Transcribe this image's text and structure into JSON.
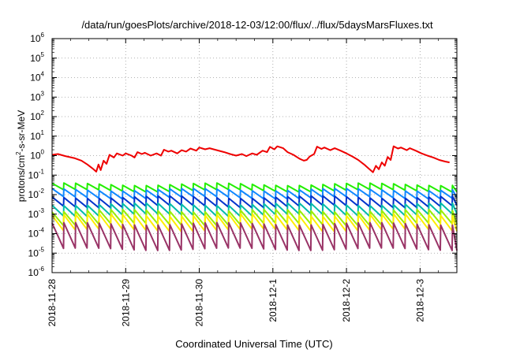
{
  "chart_data": {
    "type": "line",
    "title": "/data/run/goesPlots/archive/2018-12-03/12:00/flux/../flux/5daysMarsFluxes.txt",
    "xlabel": "Coordinated Universal Time (UTC)",
    "ylabel": {
      "prefix": "protons/cm",
      "sup": "2",
      "suffix": "-s-sr-MeV"
    },
    "yscale": "log",
    "ylim": [
      1e-06,
      1000000.0
    ],
    "y_ticks": [
      {
        "exp": -6,
        "base": "10",
        "sup": "-6"
      },
      {
        "exp": -5,
        "base": "10",
        "sup": "-5"
      },
      {
        "exp": -4,
        "base": "10",
        "sup": "-4"
      },
      {
        "exp": -3,
        "base": "10",
        "sup": "-3"
      },
      {
        "exp": -2,
        "base": "10",
        "sup": "-2"
      },
      {
        "exp": -1,
        "base": "10",
        "sup": "-1"
      },
      {
        "exp": 0,
        "base": "10",
        "sup": "0"
      },
      {
        "exp": 1,
        "base": "10",
        "sup": "1"
      },
      {
        "exp": 2,
        "base": "10",
        "sup": "2"
      },
      {
        "exp": 3,
        "base": "10",
        "sup": "3"
      },
      {
        "exp": 4,
        "base": "10",
        "sup": "4"
      },
      {
        "exp": 5,
        "base": "10",
        "sup": "5"
      },
      {
        "exp": 6,
        "base": "10",
        "sup": "6"
      }
    ],
    "x_range_days": [
      "2018-11-28T00:00",
      "2018-12-03T12:00"
    ],
    "x_ticks": [
      "2018-11-28",
      "2018-11-29",
      "2018-11-30",
      "2018-12-1",
      "2018-12-2",
      "2018-12-3"
    ],
    "grid": true,
    "series": [
      {
        "color": "#ee0000",
        "points": [
          [
            0.0,
            1.1
          ],
          [
            0.08,
            1.2
          ],
          [
            0.18,
            0.95
          ],
          [
            0.3,
            0.75
          ],
          [
            0.4,
            0.55
          ],
          [
            0.48,
            0.35
          ],
          [
            0.55,
            0.22
          ],
          [
            0.6,
            0.15
          ],
          [
            0.63,
            0.35
          ],
          [
            0.66,
            0.18
          ],
          [
            0.7,
            0.55
          ],
          [
            0.74,
            0.38
          ],
          [
            0.78,
            1.1
          ],
          [
            0.84,
            0.8
          ],
          [
            0.88,
            1.3
          ],
          [
            0.96,
            1.0
          ],
          [
            1.0,
            1.3
          ],
          [
            1.08,
            1.0
          ],
          [
            1.12,
            0.8
          ],
          [
            1.16,
            1.5
          ],
          [
            1.22,
            1.2
          ],
          [
            1.26,
            1.4
          ],
          [
            1.34,
            1.0
          ],
          [
            1.42,
            1.3
          ],
          [
            1.48,
            1.0
          ],
          [
            1.52,
            2.0
          ],
          [
            1.58,
            1.6
          ],
          [
            1.62,
            1.8
          ],
          [
            1.7,
            1.3
          ],
          [
            1.76,
            1.9
          ],
          [
            1.82,
            1.6
          ],
          [
            1.88,
            2.3
          ],
          [
            1.96,
            1.8
          ],
          [
            2.0,
            2.6
          ],
          [
            2.08,
            2.1
          ],
          [
            2.14,
            2.4
          ],
          [
            2.24,
            1.9
          ],
          [
            2.34,
            1.5
          ],
          [
            2.42,
            1.2
          ],
          [
            2.5,
            1.0
          ],
          [
            2.58,
            1.2
          ],
          [
            2.64,
            0.95
          ],
          [
            2.72,
            1.3
          ],
          [
            2.78,
            1.1
          ],
          [
            2.86,
            1.8
          ],
          [
            2.92,
            1.5
          ],
          [
            2.96,
            2.8
          ],
          [
            3.02,
            2.1
          ],
          [
            3.06,
            3.0
          ],
          [
            3.14,
            2.4
          ],
          [
            3.2,
            1.5
          ],
          [
            3.28,
            1.1
          ],
          [
            3.36,
            0.7
          ],
          [
            3.42,
            0.55
          ],
          [
            3.46,
            0.6
          ],
          [
            3.5,
            0.9
          ],
          [
            3.56,
            1.2
          ],
          [
            3.6,
            2.9
          ],
          [
            3.66,
            2.2
          ],
          [
            3.7,
            2.6
          ],
          [
            3.78,
            1.9
          ],
          [
            3.84,
            2.4
          ],
          [
            3.92,
            1.8
          ],
          [
            4.0,
            1.3
          ],
          [
            4.08,
            0.9
          ],
          [
            4.16,
            0.6
          ],
          [
            4.24,
            0.35
          ],
          [
            4.3,
            0.22
          ],
          [
            4.36,
            0.14
          ],
          [
            4.4,
            0.3
          ],
          [
            4.44,
            0.2
          ],
          [
            4.48,
            0.45
          ],
          [
            4.52,
            0.3
          ],
          [
            4.56,
            0.85
          ],
          [
            4.6,
            0.6
          ],
          [
            4.64,
            3.0
          ],
          [
            4.7,
            2.3
          ],
          [
            4.74,
            2.6
          ],
          [
            4.82,
            1.9
          ],
          [
            4.86,
            2.4
          ],
          [
            4.94,
            1.8
          ],
          [
            5.02,
            1.3
          ],
          [
            5.1,
            1.0
          ],
          [
            5.18,
            0.8
          ],
          [
            5.26,
            0.6
          ],
          [
            5.34,
            0.5
          ],
          [
            5.4,
            0.45
          ]
        ]
      },
      {
        "color": "#22ee00",
        "saw": [
          0.034,
          0.016
        ]
      },
      {
        "color": "#1188ff",
        "saw": [
          0.018,
          0.007
        ]
      },
      {
        "color": "#0033cc",
        "saw": [
          0.0075,
          0.0025
        ]
      },
      {
        "color": "#00bbaa",
        "saw": [
          0.0032,
          0.0009
        ]
      },
      {
        "color": "#99ee00",
        "saw": [
          0.0015,
          0.0003
        ]
      },
      {
        "color": "#ffee00",
        "saw": [
          0.0009,
          0.00015
        ]
      },
      {
        "color": "#993366",
        "saw": [
          0.00032,
          1.6e-05
        ]
      }
    ],
    "saw_period_days": 0.16
  }
}
